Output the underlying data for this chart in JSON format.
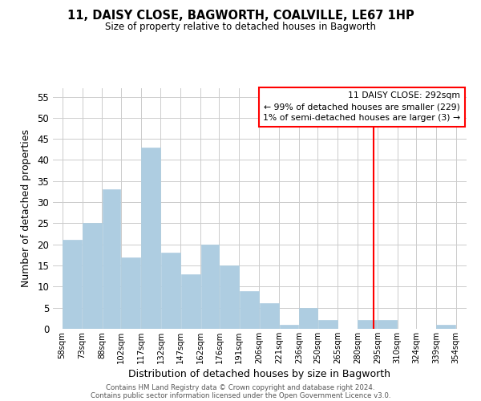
{
  "title": "11, DAISY CLOSE, BAGWORTH, COALVILLE, LE67 1HP",
  "subtitle": "Size of property relative to detached houses in Bagworth",
  "xlabel": "Distribution of detached houses by size in Bagworth",
  "ylabel": "Number of detached properties",
  "bar_left_edges": [
    58,
    73,
    88,
    102,
    117,
    132,
    147,
    162,
    176,
    191,
    206,
    221,
    236,
    250,
    265,
    280,
    295,
    310,
    324,
    339
  ],
  "bar_widths": [
    15,
    15,
    14,
    15,
    15,
    15,
    15,
    14,
    15,
    15,
    15,
    15,
    14,
    15,
    15,
    15,
    15,
    14,
    15,
    15
  ],
  "bar_heights": [
    21,
    25,
    33,
    17,
    43,
    18,
    13,
    20,
    15,
    9,
    6,
    1,
    5,
    2,
    0,
    2,
    2,
    0,
    0,
    1
  ],
  "bar_color": "#aecde1",
  "bar_edge_color": "#aecde1",
  "grid_color": "#cccccc",
  "vline_x": 292,
  "vline_color": "red",
  "ylim": [
    0,
    57
  ],
  "yticks": [
    0,
    5,
    10,
    15,
    20,
    25,
    30,
    35,
    40,
    45,
    50,
    55
  ],
  "xtick_labels": [
    "58sqm",
    "73sqm",
    "88sqm",
    "102sqm",
    "117sqm",
    "132sqm",
    "147sqm",
    "162sqm",
    "176sqm",
    "191sqm",
    "206sqm",
    "221sqm",
    "236sqm",
    "250sqm",
    "265sqm",
    "280sqm",
    "295sqm",
    "310sqm",
    "324sqm",
    "339sqm",
    "354sqm"
  ],
  "xtick_positions": [
    58,
    73,
    88,
    102,
    117,
    132,
    147,
    162,
    176,
    191,
    206,
    221,
    236,
    250,
    265,
    280,
    295,
    310,
    324,
    339,
    354
  ],
  "annotation_title": "11 DAISY CLOSE: 292sqm",
  "annotation_line1": "← 99% of detached houses are smaller (229)",
  "annotation_line2": "1% of semi-detached houses are larger (3) →",
  "annotation_box_color": "#ffffff",
  "annotation_box_edge": "red",
  "footer_line1": "Contains HM Land Registry data © Crown copyright and database right 2024.",
  "footer_line2": "Contains public sector information licensed under the Open Government Licence v3.0.",
  "background_color": "#ffffff",
  "xlim_left": 51,
  "xlim_right": 362
}
